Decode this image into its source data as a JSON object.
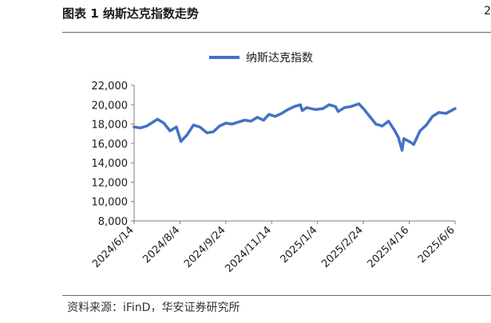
{
  "header": {
    "title": "图表 1 纳斯达克指数走势",
    "side_mark": "2"
  },
  "source": "资料来源：iFinD，华安证券研究所",
  "chart_data": {
    "type": "line",
    "title": "",
    "xlabel": "",
    "ylabel": "",
    "ylim": [
      8000,
      22000
    ],
    "yticks": [
      8000,
      10000,
      12000,
      14000,
      16000,
      18000,
      20000,
      22000
    ],
    "ytick_labels": [
      "8,000",
      "10,000",
      "12,000",
      "14,000",
      "16,000",
      "18,000",
      "20,000",
      "22,000"
    ],
    "xticks": [
      "2024/6/14",
      "2024/8/4",
      "2024/9/24",
      "2024/11/14",
      "2025/1/4",
      "2025/2/24",
      "2025/4/16",
      "2025/6/6"
    ],
    "legend": {
      "position": "top",
      "entries": [
        "纳斯达克指数"
      ]
    },
    "grid": false,
    "color": "#4472C4",
    "series": [
      {
        "name": "纳斯达克指数",
        "x": [
          "2024/6/14",
          "2024/6/21",
          "2024/6/28",
          "2024/7/5",
          "2024/7/10",
          "2024/7/17",
          "2024/7/24",
          "2024/7/31",
          "2024/8/5",
          "2024/8/12",
          "2024/8/19",
          "2024/8/26",
          "2024/9/3",
          "2024/9/10",
          "2024/9/17",
          "2024/9/24",
          "2024/10/1",
          "2024/10/8",
          "2024/10/15",
          "2024/10/22",
          "2024/10/29",
          "2024/11/5",
          "2024/11/11",
          "2024/11/18",
          "2024/11/25",
          "2024/12/2",
          "2024/12/9",
          "2024/12/16",
          "2024/12/18",
          "2024/12/23",
          "2025/1/2",
          "2025/1/10",
          "2025/1/17",
          "2025/1/24",
          "2025/1/27",
          "2025/2/3",
          "2025/2/10",
          "2025/2/19",
          "2025/2/25",
          "2025/3/3",
          "2025/3/10",
          "2025/3/17",
          "2025/3/24",
          "2025/3/31",
          "2025/4/4",
          "2025/4/8",
          "2025/4/10",
          "2025/4/16",
          "2025/4/21",
          "2025/4/28",
          "2025/5/5",
          "2025/5/12",
          "2025/5/19",
          "2025/5/27",
          "2025/6/2",
          "2025/6/6"
        ],
        "y": [
          17700,
          17600,
          17800,
          18200,
          18500,
          18100,
          17300,
          17700,
          16200,
          16900,
          17900,
          17700,
          17100,
          17200,
          17800,
          18100,
          18000,
          18200,
          18400,
          18300,
          18700,
          18400,
          19000,
          18800,
          19100,
          19500,
          19800,
          20000,
          19400,
          19700,
          19500,
          19600,
          20000,
          19800,
          19300,
          19700,
          19800,
          20100,
          19500,
          18800,
          18000,
          17800,
          18300,
          17300,
          16600,
          15300,
          16500,
          16200,
          15900,
          17300,
          17900,
          18800,
          19200,
          19100,
          19400,
          19600
        ]
      }
    ]
  }
}
